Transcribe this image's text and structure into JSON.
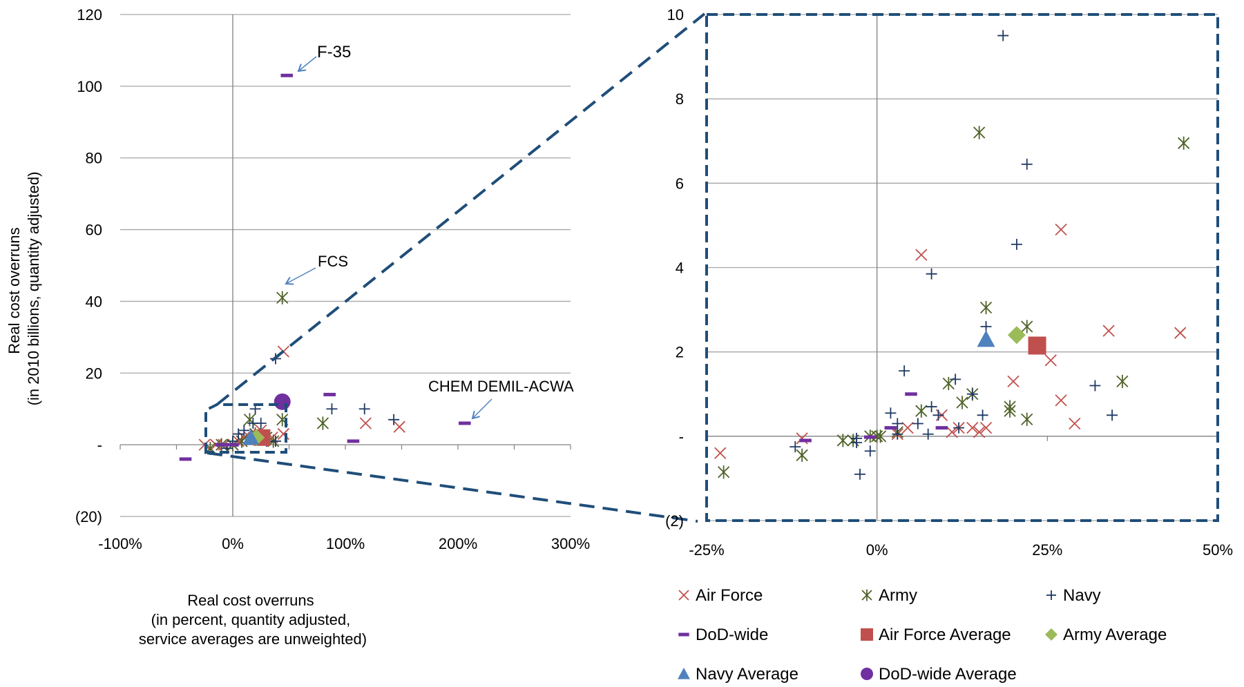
{
  "chart_data": [
    {
      "type": "scatter",
      "panel": "left",
      "ylabel": [
        "Real cost overruns",
        "(in 2010 billions, quantity adjusted)"
      ],
      "xlabel": [
        "Real cost overruns",
        "(in percent, quantity adjusted,",
        "service averages are unweighted)"
      ],
      "xlim": [
        -100,
        300
      ],
      "ylim": [
        -20,
        120
      ],
      "x_tick_values": [
        -100,
        0,
        100,
        200,
        300
      ],
      "x_tick_labels": [
        "-100%",
        "0%",
        "100%",
        "200%",
        "300%"
      ],
      "y_tick_values": [
        -20,
        0,
        20,
        40,
        60,
        80,
        100,
        120
      ],
      "y_tick_labels": [
        "(20)",
        "-",
        "20",
        "40",
        "60",
        "80",
        "100",
        "120"
      ],
      "grid": "horizontal major lines",
      "annotations": [
        {
          "text": "F-35",
          "x": 53,
          "y": 103
        },
        {
          "text": "FCS",
          "x": 43,
          "y": 41
        },
        {
          "text": "CHEM DEMIL-ACWA",
          "x": 208,
          "y": 6
        }
      ],
      "series": [
        {
          "name": "Air Force",
          "marker": "x",
          "color": "#C0504D",
          "points": [
            [
              -25,
              0
            ],
            [
              -15,
              0
            ],
            [
              -8,
              0
            ],
            [
              0,
              0
            ],
            [
              5,
              1
            ],
            [
              10,
              2
            ],
            [
              15,
              2
            ],
            [
              20,
              3
            ],
            [
              25,
              4
            ],
            [
              35,
              2
            ],
            [
              45,
              26
            ],
            [
              45,
              3
            ],
            [
              118,
              6
            ],
            [
              148,
              5
            ]
          ]
        },
        {
          "name": "Army",
          "marker": "asterisk",
          "color": "#4F6228",
          "points": [
            [
              -20,
              -1
            ],
            [
              -10,
              0
            ],
            [
              0,
              0
            ],
            [
              8,
              1
            ],
            [
              15,
              7
            ],
            [
              20,
              3
            ],
            [
              30,
              2
            ],
            [
              36,
              1
            ],
            [
              44,
              41
            ],
            [
              44,
              7
            ],
            [
              80,
              6
            ]
          ]
        },
        {
          "name": "Navy",
          "marker": "plus",
          "color": "#1F3864",
          "points": [
            [
              -5,
              -1
            ],
            [
              0,
              1
            ],
            [
              5,
              3
            ],
            [
              10,
              4
            ],
            [
              18,
              6
            ],
            [
              20,
              10
            ],
            [
              22,
              2
            ],
            [
              25,
              6
            ],
            [
              30,
              1
            ],
            [
              38,
              24
            ],
            [
              38,
              1
            ],
            [
              88,
              10
            ],
            [
              117,
              10
            ],
            [
              143,
              7
            ]
          ]
        },
        {
          "name": "DoD-wide",
          "marker": "dash",
          "color": "#7030A0",
          "points": [
            [
              -42,
              -4
            ],
            [
              -10,
              0
            ],
            [
              0,
              0
            ],
            [
              48,
              103
            ],
            [
              86,
              14
            ],
            [
              107,
              1
            ],
            [
              206,
              6
            ]
          ]
        },
        {
          "name": "Air Force Average",
          "marker": "square",
          "color": "#C0504D",
          "points": [
            [
              26,
              2
            ]
          ]
        },
        {
          "name": "Army Average",
          "marker": "diamond",
          "color": "#9BBB59",
          "points": [
            [
              21,
              2
            ]
          ]
        },
        {
          "name": "Navy Average",
          "marker": "triangle",
          "color": "#4F81BD",
          "points": [
            [
              16,
              2
            ]
          ]
        },
        {
          "name": "DoD-wide Average",
          "marker": "circle",
          "color": "#7030A0",
          "points": [
            [
              44,
              12
            ]
          ]
        }
      ]
    },
    {
      "type": "scatter",
      "panel": "right (zoom of dashed region)",
      "xlim": [
        -25,
        50
      ],
      "ylim": [
        -2,
        10
      ],
      "x_tick_values": [
        -25,
        0,
        25,
        50
      ],
      "x_tick_labels": [
        "-25%",
        "0%",
        "25%",
        "50%"
      ],
      "y_tick_values": [
        -2,
        0,
        2,
        4,
        6,
        8,
        10
      ],
      "y_tick_labels": [
        "(2)",
        "-",
        "2",
        "4",
        "6",
        "8",
        "10"
      ],
      "grid": "horizontal major lines",
      "legend": "bottom",
      "series": [
        {
          "name": "Air Force",
          "marker": "x",
          "color": "#C0504D",
          "points": [
            [
              -23,
              -0.4
            ],
            [
              6.5,
              4.3
            ],
            [
              27,
              4.9
            ],
            [
              34,
              2.5
            ],
            [
              44.5,
              2.45
            ],
            [
              25.5,
              1.8
            ],
            [
              20,
              1.3
            ],
            [
              27,
              0.85
            ],
            [
              29,
              0.3
            ],
            [
              12,
              0.2
            ],
            [
              14,
              0.2
            ],
            [
              16,
              0.2
            ],
            [
              15,
              0.1
            ],
            [
              11,
              0.1
            ],
            [
              9.5,
              0.5
            ],
            [
              4.5,
              0.2
            ],
            [
              3,
              0.05
            ],
            [
              -11,
              -0.05
            ]
          ]
        },
        {
          "name": "Army",
          "marker": "asterisk",
          "color": "#4F6228",
          "points": [
            [
              -22.5,
              -0.85
            ],
            [
              15,
              7.2
            ],
            [
              45,
              6.95
            ],
            [
              16,
              3.05
            ],
            [
              22,
              2.6
            ],
            [
              36,
              1.3
            ],
            [
              10.5,
              1.25
            ],
            [
              14,
              1.0
            ],
            [
              12.5,
              0.8
            ],
            [
              19.5,
              0.7
            ],
            [
              19.5,
              0.6
            ],
            [
              22,
              0.4
            ],
            [
              6.5,
              0.6
            ],
            [
              3,
              0.1
            ],
            [
              -11,
              -0.45
            ],
            [
              -5,
              -0.1
            ],
            [
              -3.5,
              -0.1
            ],
            [
              -1,
              0
            ],
            [
              0,
              0
            ],
            [
              0.5,
              0
            ]
          ]
        },
        {
          "name": "Navy",
          "marker": "plus",
          "color": "#1F3864",
          "points": [
            [
              18.5,
              9.5
            ],
            [
              22,
              6.45
            ],
            [
              20.5,
              4.55
            ],
            [
              8,
              3.85
            ],
            [
              16,
              2.6
            ],
            [
              4,
              1.55
            ],
            [
              11.5,
              1.35
            ],
            [
              32,
              1.2
            ],
            [
              14,
              1.0
            ],
            [
              9,
              0.5
            ],
            [
              15.5,
              0.5
            ],
            [
              34.5,
              0.5
            ],
            [
              8,
              0.7
            ],
            [
              2,
              0.55
            ],
            [
              3,
              0.3
            ],
            [
              6,
              0.3
            ],
            [
              12,
              0.2
            ],
            [
              7.5,
              0.05
            ],
            [
              -3,
              -0.05
            ],
            [
              -3,
              -0.15
            ],
            [
              -1,
              -0.35
            ],
            [
              -2.5,
              -0.9
            ],
            [
              -12,
              -0.25
            ],
            [
              3,
              0.05
            ]
          ]
        },
        {
          "name": "DoD-wide",
          "marker": "dash",
          "color": "#7030A0",
          "points": [
            [
              5,
              1.0
            ],
            [
              9.5,
              0.2
            ],
            [
              -10.5,
              -0.1
            ],
            [
              -1,
              -0.02
            ],
            [
              2,
              0.2
            ]
          ]
        },
        {
          "name": "Air Force Average",
          "marker": "square",
          "color": "#C0504D",
          "points": [
            [
              23.5,
              2.15
            ]
          ]
        },
        {
          "name": "Army Average",
          "marker": "diamond",
          "color": "#9BBB59",
          "points": [
            [
              20.5,
              2.4
            ]
          ]
        },
        {
          "name": "Navy Average",
          "marker": "triangle",
          "color": "#4F81BD",
          "points": [
            [
              16,
              2.3
            ]
          ]
        },
        {
          "name": "DoD-wide Average",
          "marker": "circle",
          "color": "#7030A0",
          "points": []
        }
      ]
    }
  ],
  "legend_items": [
    {
      "label": "Air Force",
      "marker": "x",
      "color": "#C0504D"
    },
    {
      "label": "Army",
      "marker": "asterisk",
      "color": "#4F6228"
    },
    {
      "label": "Navy",
      "marker": "plus",
      "color": "#1F3864"
    },
    {
      "label": "DoD-wide",
      "marker": "dash",
      "color": "#7030A0"
    },
    {
      "label": "Air Force Average",
      "marker": "square",
      "color": "#C0504D"
    },
    {
      "label": "Army Average",
      "marker": "diamond",
      "color": "#9BBB59"
    },
    {
      "label": "Navy Average",
      "marker": "triangle",
      "color": "#4F81BD"
    },
    {
      "label": "DoD-wide Average",
      "marker": "circle",
      "color": "#7030A0"
    }
  ],
  "colors": {
    "zoom_box": "#1F4E79",
    "grid": "#A6A6A6",
    "axis": "#808080",
    "arrow": "#4F81BD"
  }
}
